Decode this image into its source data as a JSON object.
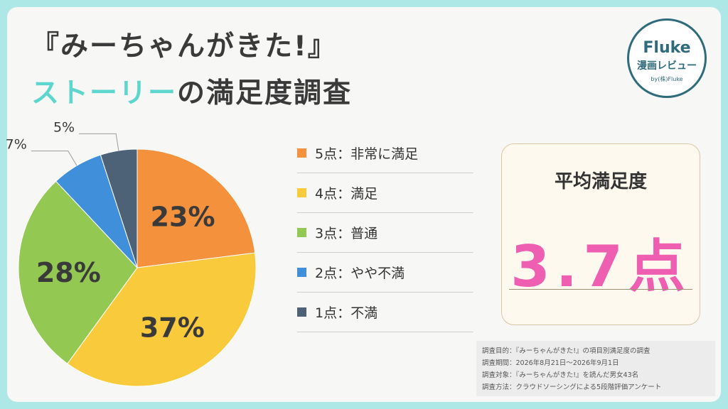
{
  "title": {
    "line1": "『みーちゃんがきた!』",
    "line2_highlight": "ストーリー",
    "line2_rest": "の満足度調査"
  },
  "logo": {
    "name": "Fluke",
    "subtitle": "漫画レビュー",
    "credit": "by(株)Fluke",
    "color": "#2f6b7a"
  },
  "chart_data": {
    "type": "pie",
    "slices": [
      {
        "label": "5点：非常に満足",
        "value": 23,
        "display": "23%",
        "color": "#f3913c"
      },
      {
        "label": "4点：満足",
        "value": 37,
        "display": "37%",
        "color": "#f8ca3c"
      },
      {
        "label": "3点：普通",
        "value": 28,
        "display": "28%",
        "color": "#93c952"
      },
      {
        "label": "2点：やや不満",
        "value": 7,
        "display": "7%",
        "color": "#3f8fdb"
      },
      {
        "label": "1点：不満",
        "value": 5,
        "display": "5%",
        "color": "#4d6276"
      }
    ],
    "legend_position": "right"
  },
  "average": {
    "label": "平均満足度",
    "value": "3.7点",
    "color": "#ef5fb1"
  },
  "notes": [
    "調査目的：『みーちゃんがきた!』の項目別満足度の調査",
    "調査期間：2026年8月21日～2026年9月1日",
    "調査対象：『みーちゃんがきた!』を読んだ男女43名",
    "調査方法：クラウドソーシングによる5段階評価アンケート"
  ],
  "colors": {
    "background": "#aee8e6",
    "highlight": "#5dd6cd"
  }
}
